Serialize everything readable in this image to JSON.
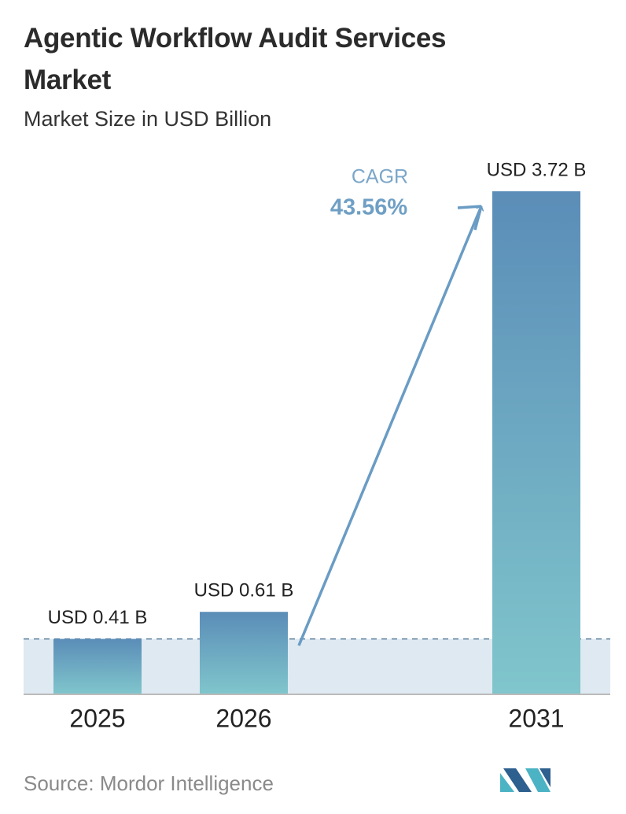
{
  "chart_data": {
    "type": "bar",
    "title": "Agentic Workflow Audit Services Market",
    "subtitle": "Market Size in USD Billion",
    "categories": [
      "2025",
      "2026",
      "2031"
    ],
    "values": [
      0.41,
      0.61,
      3.72
    ],
    "value_labels": [
      "USD 0.41 B",
      "USD 0.61 B",
      "USD 3.72 B"
    ],
    "annotation": {
      "label": "CAGR",
      "value": "43.56%"
    },
    "source": "Source: Mordor Intelligence",
    "color": "#5b8db8",
    "color_end": "#80c6cc"
  }
}
